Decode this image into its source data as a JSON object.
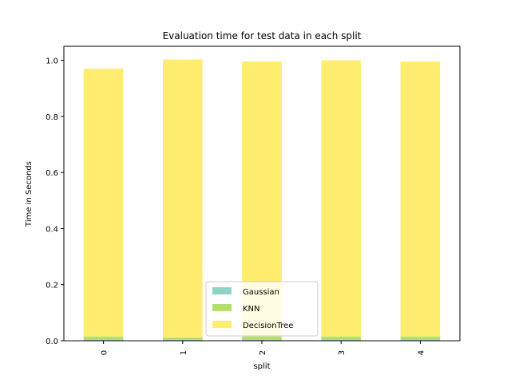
{
  "chart_data": {
    "type": "bar",
    "stacked": true,
    "title": "Evaluation time for test data in each split",
    "xlabel": "split",
    "ylabel": "Time in Seconds",
    "categories": [
      "0",
      "1",
      "2",
      "3",
      "4"
    ],
    "ylim": [
      0,
      1.05
    ],
    "yticks": [
      "0.0",
      "0.2",
      "0.4",
      "0.6",
      "0.8",
      "1.0"
    ],
    "series": [
      {
        "name": "Gaussian",
        "color": "#8dd3c7",
        "values": [
          0.003,
          0.003,
          0.003,
          0.003,
          0.003
        ]
      },
      {
        "name": "KNN",
        "color": "#b3de69",
        "values": [
          0.012,
          0.008,
          0.012,
          0.012,
          0.012
        ]
      },
      {
        "name": "DecisionTree",
        "color": "#ffed6f",
        "values": [
          0.955,
          0.992,
          0.981,
          0.985,
          0.981
        ]
      }
    ],
    "legend_position": "lower center",
    "grid": false
  }
}
